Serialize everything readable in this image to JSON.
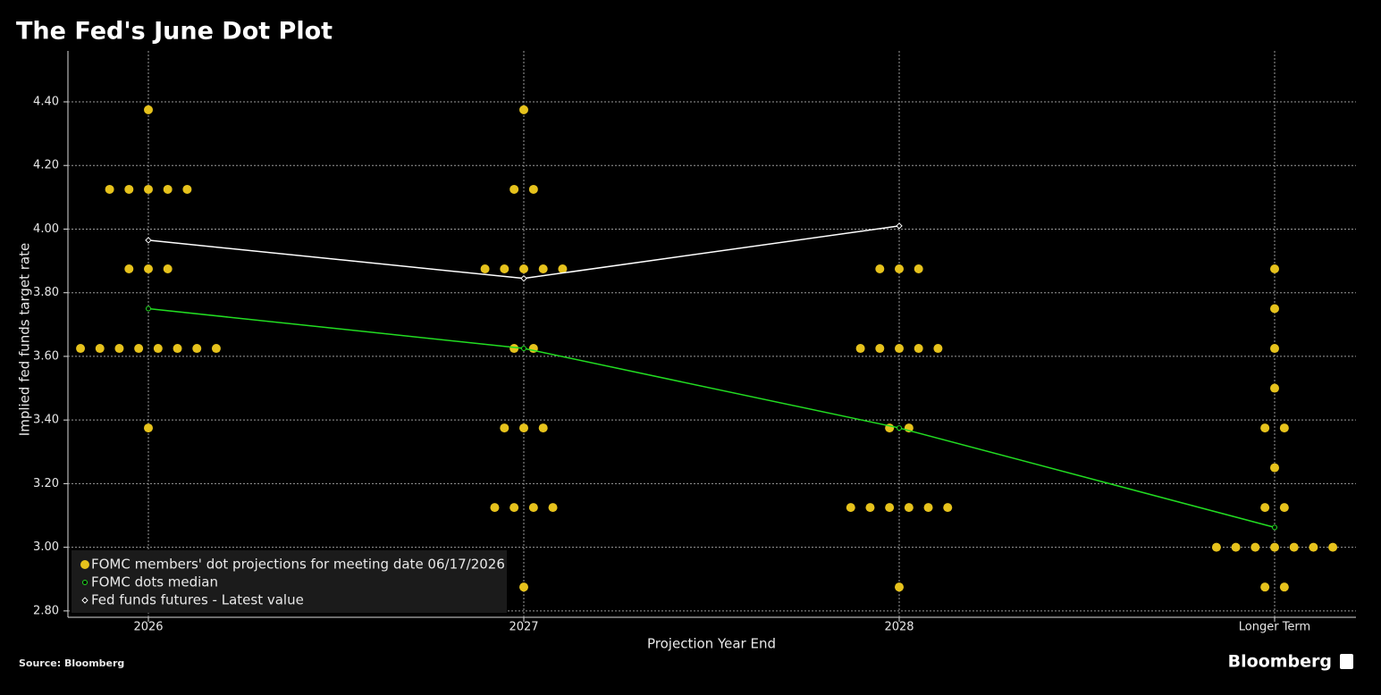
{
  "chart_data": {
    "type": "dot_plot",
    "title": "The Fed's June Dot Plot",
    "x_label": "Projection Year End",
    "y_label": "Implied fed funds target rate",
    "source": "Source: Bloomberg",
    "brand": "Bloomberg",
    "categories": [
      "2026",
      "2027",
      "2028",
      "Longer Term"
    ],
    "ylim": [
      2.78,
      4.56
    ],
    "yticks": [
      {
        "value": 2.8,
        "label": "2.80"
      },
      {
        "value": 3.0,
        "label": "3.00"
      },
      {
        "value": 3.2,
        "label": "3.20"
      },
      {
        "value": 3.4,
        "label": "3.40"
      },
      {
        "value": 3.6,
        "label": "3.60"
      },
      {
        "value": 3.8,
        "label": "3.80"
      },
      {
        "value": 4.0,
        "label": "4.00"
      },
      {
        "value": 4.2,
        "label": "4.20"
      },
      {
        "value": 4.4,
        "label": "4.40"
      }
    ],
    "grid": true,
    "legend": "lower left",
    "series": [
      {
        "name": "FOMC members' dot projections for meeting date 06/17/2026",
        "color": "#e6c21c",
        "kind": "dots",
        "values": [
          [
            4.375,
            4.125,
            4.125,
            4.125,
            4.125,
            4.125,
            3.875,
            3.875,
            3.875,
            3.625,
            3.625,
            3.625,
            3.625,
            3.625,
            3.625,
            3.625,
            3.625,
            3.375
          ],
          [
            4.375,
            4.125,
            4.125,
            3.875,
            3.875,
            3.875,
            3.875,
            3.875,
            3.625,
            3.625,
            3.375,
            3.375,
            3.375,
            3.125,
            3.125,
            3.125,
            3.125,
            2.875
          ],
          [
            3.875,
            3.875,
            3.875,
            3.625,
            3.625,
            3.625,
            3.625,
            3.625,
            3.375,
            3.375,
            3.125,
            3.125,
            3.125,
            3.125,
            3.125,
            3.125,
            2.875
          ],
          [
            3.875,
            3.75,
            3.625,
            3.5,
            3.375,
            3.375,
            3.25,
            3.125,
            3.125,
            3.0,
            3.0,
            3.0,
            3.0,
            3.0,
            3.0,
            3.0,
            2.875,
            2.875
          ]
        ]
      },
      {
        "name": "FOMC dots median",
        "color": "#22dd22",
        "kind": "median",
        "values": [
          3.75,
          3.625,
          3.375,
          3.0625
        ]
      },
      {
        "name": "Fed funds futures - Latest value",
        "color": "#ffffff",
        "kind": "futures",
        "values": [
          3.965,
          3.845,
          4.01,
          null
        ]
      }
    ]
  }
}
